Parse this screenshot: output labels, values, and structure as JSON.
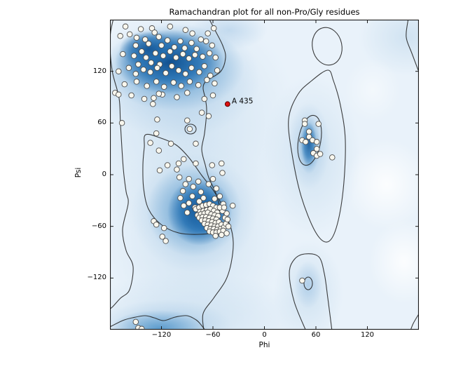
{
  "title": "Ramachandran plot for all non-Pro/Gly residues",
  "chart_data": {
    "type": "scatter",
    "title": "Ramachandran plot for all non-Pro/Gly residues",
    "xlabel": "Phi",
    "ylabel": "Psi",
    "xlim": [
      -180,
      180
    ],
    "ylim": [
      -180,
      180
    ],
    "x_ticks": [
      {
        "value": -120,
        "label": "−120"
      },
      {
        "value": -60,
        "label": "−60"
      },
      {
        "value": 0,
        "label": "0"
      },
      {
        "value": 60,
        "label": "60"
      },
      {
        "value": 120,
        "label": "120"
      }
    ],
    "y_ticks": [
      {
        "value": 120,
        "label": "120"
      },
      {
        "value": 60,
        "label": "60"
      },
      {
        "value": 0,
        "label": "0"
      },
      {
        "value": -60,
        "label": "−60"
      },
      {
        "value": -120,
        "label": "−120"
      }
    ],
    "grid": false,
    "legend": "none",
    "background_note": "blue kernel-density shading of favoured/allowed Ramachandran regions with black contour outlines",
    "series": [
      {
        "name": "non-Pro/Gly residues",
        "marker": "circle",
        "points": [
          [
            -162,
            172
          ],
          [
            -144,
            169
          ],
          [
            -131,
            170
          ],
          [
            -128,
            165
          ],
          [
            -110,
            172
          ],
          [
            -92,
            168
          ],
          [
            -84,
            164
          ],
          [
            -66,
            164
          ],
          [
            -59,
            170
          ],
          [
            -168,
            161
          ],
          [
            -157,
            163
          ],
          [
            -149,
            159
          ],
          [
            -139,
            157
          ],
          [
            -123,
            160
          ],
          [
            -113,
            156
          ],
          [
            -98,
            155
          ],
          [
            -85,
            153
          ],
          [
            -74,
            157
          ],
          [
            -68,
            155
          ],
          [
            -61,
            150
          ],
          [
            -150,
            150
          ],
          [
            -135,
            152
          ],
          [
            -120,
            150
          ],
          [
            -105,
            148
          ],
          [
            -93,
            147
          ],
          [
            -79,
            146
          ],
          [
            -165,
            140
          ],
          [
            -152,
            138
          ],
          [
            -143,
            143
          ],
          [
            -138,
            136
          ],
          [
            -127,
            141
          ],
          [
            -118,
            138
          ],
          [
            -110,
            143
          ],
          [
            -103,
            136
          ],
          [
            -95,
            140
          ],
          [
            -88,
            135
          ],
          [
            -81,
            139
          ],
          [
            -72,
            137
          ],
          [
            -64,
            141
          ],
          [
            -57,
            136
          ],
          [
            -132,
            130
          ],
          [
            -147,
            128
          ],
          [
            -122,
            128
          ],
          [
            -170,
            120
          ],
          [
            -158,
            124
          ],
          [
            -150,
            117
          ],
          [
            -141,
            122
          ],
          [
            -133,
            119
          ],
          [
            -125,
            124
          ],
          [
            -115,
            118
          ],
          [
            -108,
            126
          ],
          [
            -100,
            121
          ],
          [
            -92,
            117
          ],
          [
            -85,
            124
          ],
          [
            -76,
            119
          ],
          [
            -70,
            126
          ],
          [
            -63,
            115
          ],
          [
            -55,
            121
          ],
          [
            -163,
            105
          ],
          [
            -149,
            108
          ],
          [
            -137,
            103
          ],
          [
            -126,
            108
          ],
          [
            -117,
            102
          ],
          [
            -106,
            107
          ],
          [
            -97,
            103
          ],
          [
            -87,
            108
          ],
          [
            -77,
            104
          ],
          [
            -67,
            110
          ],
          [
            -58,
            106
          ],
          [
            -155,
            92
          ],
          [
            -140,
            88
          ],
          [
            -119,
            93
          ],
          [
            -102,
            90
          ],
          [
            -90,
            95
          ],
          [
            -70,
            88
          ],
          [
            -60,
            92
          ],
          [
            -174,
            95
          ],
          [
            -170,
            93
          ],
          [
            -129,
            89
          ],
          [
            -123,
            94
          ],
          [
            -130,
            82
          ],
          [
            -125,
            64
          ],
          [
            -166,
            60
          ],
          [
            -90,
            63
          ],
          [
            -73,
            72
          ],
          [
            -65,
            68
          ],
          [
            -87,
            53
          ],
          [
            -126,
            48
          ],
          [
            -133,
            37
          ],
          [
            -109,
            36
          ],
          [
            -80,
            36
          ],
          [
            -123,
            28
          ],
          [
            -94,
            18
          ],
          [
            -113,
            11
          ],
          [
            -100,
            13
          ],
          [
            -80,
            13
          ],
          [
            -122,
            5
          ],
          [
            -102,
            6
          ],
          [
            -61,
            11
          ],
          [
            -49,
            2
          ],
          [
            -50,
            13
          ],
          [
            -99,
            -3
          ],
          [
            -92,
            -11
          ],
          [
            -95,
            -19
          ],
          [
            -98,
            -27
          ],
          [
            -94,
            -36
          ],
          [
            -65,
            -11
          ],
          [
            -129,
            -54
          ],
          [
            -126,
            -58
          ],
          [
            -117,
            -62
          ],
          [
            -119,
            -72
          ],
          [
            -115,
            -77
          ],
          [
            -37,
            -36
          ],
          [
            -88,
            -5
          ],
          [
            -83,
            -14
          ],
          [
            -77,
            -8
          ],
          [
            -74,
            -20
          ],
          [
            -84,
            -25
          ],
          [
            -76,
            -31
          ],
          [
            -71,
            -27
          ],
          [
            -88,
            -33
          ],
          [
            -81,
            -38
          ],
          [
            -90,
            -44
          ],
          [
            -60,
            -5
          ],
          [
            -56,
            -16
          ],
          [
            -52,
            -25
          ],
          [
            -48,
            -34
          ],
          [
            -58,
            -28
          ],
          [
            -80,
            -40
          ],
          [
            -76,
            -38
          ],
          [
            -72,
            -36
          ],
          [
            -68,
            -35
          ],
          [
            -64,
            -34
          ],
          [
            -60,
            -36
          ],
          [
            -56,
            -38
          ],
          [
            -75,
            -43
          ],
          [
            -71,
            -42
          ],
          [
            -67,
            -41
          ],
          [
            -63,
            -40
          ],
          [
            -59,
            -42
          ],
          [
            -55,
            -44
          ],
          [
            -78,
            -47
          ],
          [
            -74,
            -46
          ],
          [
            -70,
            -45
          ],
          [
            -66,
            -44
          ],
          [
            -62,
            -46
          ],
          [
            -58,
            -47
          ],
          [
            -54,
            -48
          ],
          [
            -76,
            -50
          ],
          [
            -72,
            -49
          ],
          [
            -68,
            -49
          ],
          [
            -64,
            -50
          ],
          [
            -60,
            -51
          ],
          [
            -56,
            -52
          ],
          [
            -73,
            -53
          ],
          [
            -69,
            -53
          ],
          [
            -65,
            -54
          ],
          [
            -61,
            -55
          ],
          [
            -57,
            -56
          ],
          [
            -53,
            -55
          ],
          [
            -70,
            -57
          ],
          [
            -66,
            -58
          ],
          [
            -62,
            -59
          ],
          [
            -58,
            -60
          ],
          [
            -54,
            -60
          ],
          [
            -50,
            -58
          ],
          [
            -67,
            -62
          ],
          [
            -63,
            -63
          ],
          [
            -59,
            -63
          ],
          [
            -55,
            -64
          ],
          [
            -51,
            -63
          ],
          [
            -47,
            -61
          ],
          [
            -64,
            -66
          ],
          [
            -60,
            -67
          ],
          [
            -56,
            -67
          ],
          [
            -52,
            -66
          ],
          [
            -48,
            -65
          ],
          [
            -45,
            -57
          ],
          [
            -46,
            -50
          ],
          [
            -44,
            -45
          ],
          [
            -49,
            -42
          ],
          [
            -52,
            -38
          ],
          [
            -47,
            -38
          ],
          [
            -43,
            -52
          ],
          [
            -42,
            -60
          ],
          [
            -50,
            -70
          ],
          [
            -57,
            -71
          ],
          [
            -44,
            -68
          ],
          [
            47,
            63
          ],
          [
            47,
            59
          ],
          [
            63,
            59
          ],
          [
            52,
            50
          ],
          [
            52,
            44
          ],
          [
            44,
            40
          ],
          [
            48,
            38
          ],
          [
            56,
            40
          ],
          [
            61,
            38
          ],
          [
            61,
            30
          ],
          [
            57,
            25
          ],
          [
            61,
            22
          ],
          [
            65,
            24
          ],
          [
            79,
            20
          ],
          [
            44,
            -123
          ],
          [
            -150,
            -171
          ],
          [
            -147,
            -178
          ],
          [
            -143,
            -179
          ]
        ]
      },
      {
        "name": "outlier",
        "marker": "circle",
        "points": [
          [
            -43,
            82
          ]
        ]
      }
    ],
    "annotations": [
      {
        "text": "A 435",
        "phi": -43,
        "psi": 82
      }
    ]
  },
  "colors": {
    "density_high": "#11508f",
    "density_mid": "#4f94c9",
    "density_low": "#aecde8",
    "plot_background": "#e9f2fa",
    "contour": "#222222",
    "axis": "#1a1a1a",
    "marker_fill": "#f9f7ee",
    "marker_edge": "#4d4d4d",
    "outlier_fill": "#dd1010",
    "outlier_edge": "#5a0000",
    "text": "#000000"
  }
}
